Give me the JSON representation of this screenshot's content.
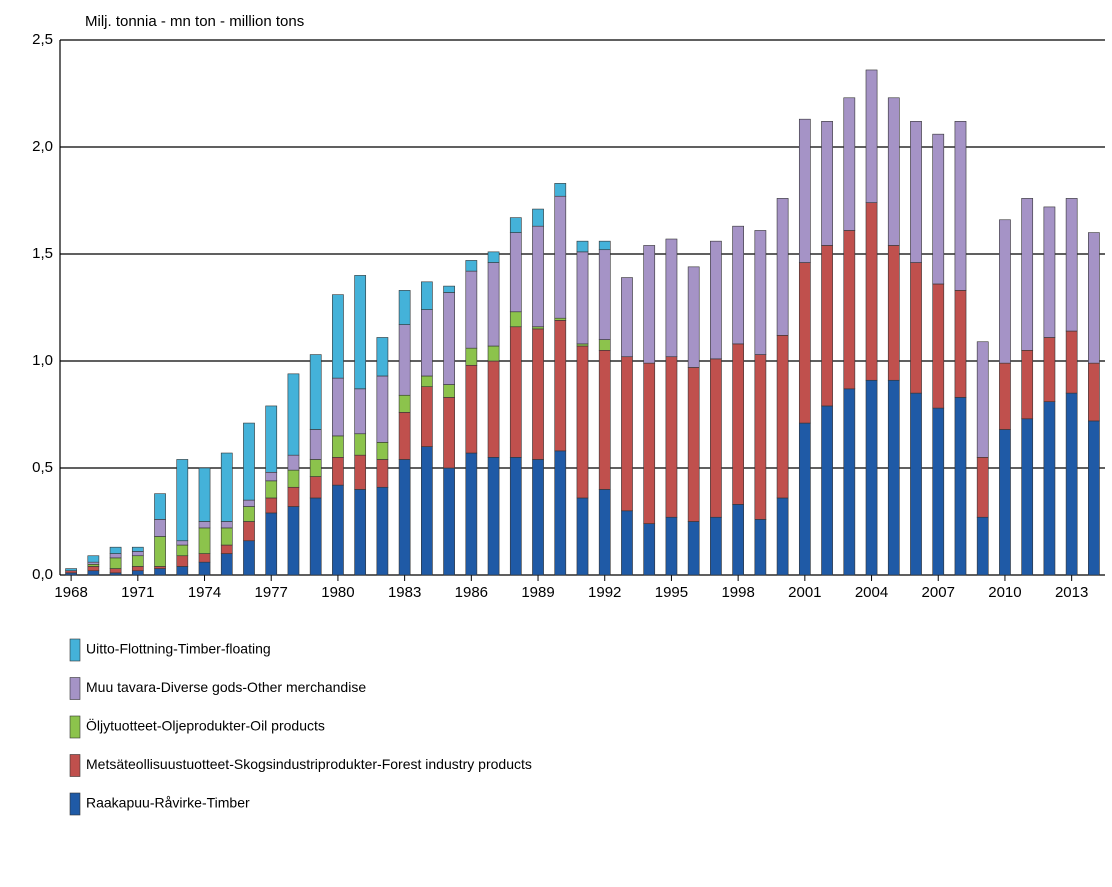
{
  "chart_data": {
    "type": "stacked_bar",
    "title": "Milj. tonnia - mn ton - million tons",
    "categories": [
      "1968",
      null,
      null,
      "1971",
      null,
      null,
      "1974",
      null,
      null,
      "1977",
      null,
      null,
      "1980",
      null,
      null,
      "1983",
      null,
      null,
      "1986",
      null,
      null,
      "1989",
      null,
      null,
      "1992",
      null,
      null,
      "1995",
      null,
      null,
      "1998",
      null,
      null,
      "2001",
      null,
      null,
      "2004",
      null,
      null,
      "2007",
      null,
      null,
      "2010",
      null,
      null,
      "2013",
      null
    ],
    "series": [
      {
        "name": "Raakapuu-Råvirke-Timber",
        "color": "#1f5aa6",
        "values": [
          0.01,
          0.02,
          0.01,
          0.02,
          0.03,
          0.04,
          0.06,
          0.1,
          0.16,
          0.29,
          0.32,
          0.36,
          0.42,
          0.4,
          0.41,
          0.54,
          0.6,
          0.5,
          0.57,
          0.55,
          0.55,
          0.54,
          0.58,
          0.36,
          0.4,
          0.3,
          0.24,
          0.27,
          0.25,
          0.27,
          0.33,
          0.26,
          0.36,
          0.71,
          0.79,
          0.87,
          0.91,
          0.91,
          0.85,
          0.78,
          0.83,
          0.27,
          0.68,
          0.73,
          0.81,
          0.85,
          0.72
        ]
      },
      {
        "name": "Metsäteollisuustuotteet-Skogsindustriprodukter-Forest industry products",
        "color": "#c0504d",
        "values": [
          0.01,
          0.02,
          0.02,
          0.02,
          0.01,
          0.05,
          0.04,
          0.04,
          0.09,
          0.07,
          0.09,
          0.1,
          0.13,
          0.16,
          0.13,
          0.22,
          0.28,
          0.33,
          0.41,
          0.45,
          0.61,
          0.61,
          0.61,
          0.71,
          0.65,
          0.72,
          0.75,
          0.75,
          0.72,
          0.74,
          0.75,
          0.77,
          0.76,
          0.75,
          0.75,
          0.74,
          0.83,
          0.63,
          0.61,
          0.58,
          0.5,
          0.28,
          0.31,
          0.32,
          0.3,
          0.29,
          0.27
        ]
      },
      {
        "name": "Öljytuotteet-Oljeprodukter-Oil products",
        "color": "#8cc34c",
        "values": [
          0,
          0.01,
          0.05,
          0.05,
          0.14,
          0.05,
          0.12,
          0.08,
          0.07,
          0.08,
          0.08,
          0.08,
          0.1,
          0.1,
          0.08,
          0.08,
          0.05,
          0.06,
          0.08,
          0.07,
          0.07,
          0.01,
          0.01,
          0.01,
          0.05,
          0,
          0,
          0,
          0,
          0,
          0,
          0,
          0,
          0,
          0,
          0,
          0,
          0,
          0,
          0,
          0,
          0,
          0,
          0,
          0,
          0,
          0
        ]
      },
      {
        "name": "Muu tavara-Diverse gods-Other merchandise",
        "color": "#a593c6",
        "values": [
          0,
          0.01,
          0.02,
          0.02,
          0.08,
          0.02,
          0.03,
          0.03,
          0.03,
          0.04,
          0.07,
          0.14,
          0.27,
          0.21,
          0.31,
          0.33,
          0.31,
          0.43,
          0.36,
          0.39,
          0.37,
          0.47,
          0.57,
          0.43,
          0.42,
          0.37,
          0.55,
          0.55,
          0.47,
          0.55,
          0.55,
          0.58,
          0.64,
          0.67,
          0.58,
          0.62,
          0.62,
          0.69,
          0.66,
          0.7,
          0.79,
          0.54,
          0.67,
          0.71,
          0.61,
          0.62,
          0.61
        ]
      },
      {
        "name": "Uitto-Flottning-Timber-floating",
        "color": "#44b2d9",
        "values": [
          0.01,
          0.03,
          0.03,
          0.02,
          0.12,
          0.38,
          0.25,
          0.32,
          0.36,
          0.31,
          0.38,
          0.35,
          0.39,
          0.53,
          0.18,
          0.16,
          0.13,
          0.03,
          0.05,
          0.05,
          0.07,
          0.08,
          0.06,
          0.05,
          0.04,
          0,
          0,
          0,
          0,
          0,
          0,
          0,
          0,
          0,
          0,
          0,
          0,
          0,
          0,
          0,
          0,
          0,
          0,
          0,
          0,
          0,
          0
        ]
      }
    ],
    "ylim": [
      0,
      2.5
    ],
    "yticks": [
      {
        "value": 0,
        "label": "0,0"
      },
      {
        "value": 0.5,
        "label": "0,5"
      },
      {
        "value": 1,
        "label": "1,0"
      },
      {
        "value": 1.5,
        "label": "1,5"
      },
      {
        "value": 2,
        "label": "2,0"
      },
      {
        "value": 2.5,
        "label": "2,5"
      }
    ],
    "grid": true
  }
}
